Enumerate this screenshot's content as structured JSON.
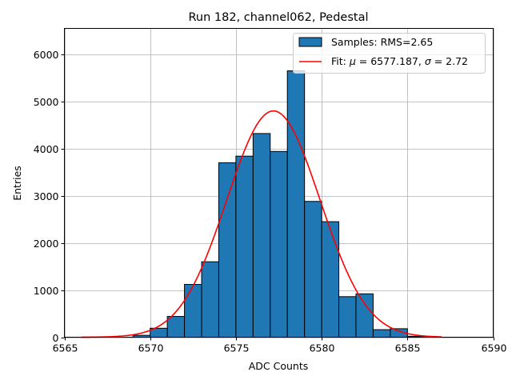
{
  "chart_data": {
    "type": "bar",
    "title": "Run 182, channel062, Pedestal",
    "xlabel": "ADC Counts",
    "ylabel": "Entries",
    "xlim": [
      6565,
      6590
    ],
    "ylim": [
      0,
      6550
    ],
    "x_ticks": [
      6565,
      6570,
      6575,
      6580,
      6585,
      6590
    ],
    "y_ticks": [
      0,
      1000,
      2000,
      3000,
      4000,
      5000,
      6000
    ],
    "grid": true,
    "legend_position": "top-right",
    "series": [
      {
        "name": "Samples: RMS=2.65",
        "kind": "histogram",
        "color": "#1f77b4",
        "bins": [
          {
            "left": 6569,
            "right": 6570,
            "count": 40
          },
          {
            "left": 6570,
            "right": 6571,
            "count": 190
          },
          {
            "left": 6571,
            "right": 6572,
            "count": 440
          },
          {
            "left": 6572,
            "right": 6573,
            "count": 1120
          },
          {
            "left": 6573,
            "right": 6574,
            "count": 1600
          },
          {
            "left": 6574,
            "right": 6575,
            "count": 3700
          },
          {
            "left": 6575,
            "right": 6576,
            "count": 3840
          },
          {
            "left": 6576,
            "right": 6577,
            "count": 4320
          },
          {
            "left": 6577,
            "right": 6578,
            "count": 3940
          },
          {
            "left": 6578,
            "right": 6579,
            "count": 5650
          },
          {
            "left": 6579,
            "right": 6580,
            "count": 2880
          },
          {
            "left": 6580,
            "right": 6581,
            "count": 2450
          },
          {
            "left": 6581,
            "right": 6582,
            "count": 860
          },
          {
            "left": 6582,
            "right": 6583,
            "count": 920
          },
          {
            "left": 6583,
            "right": 6584,
            "count": 160
          },
          {
            "left": 6584,
            "right": 6585,
            "count": 180
          },
          {
            "left": 6585,
            "right": 6586,
            "count": 20
          }
        ]
      },
      {
        "name_prefix": "Fit: ",
        "name_mu": "μ",
        "name_mid": " = 6577.187, ",
        "name_sigma": "σ",
        "name_suffix": " = 2.72",
        "kind": "gaussian-fit",
        "color": "#ff0000",
        "mu": 6577.187,
        "sigma": 2.72,
        "amplitude": 4800,
        "x_range": [
          6566,
          6587
        ]
      }
    ]
  }
}
